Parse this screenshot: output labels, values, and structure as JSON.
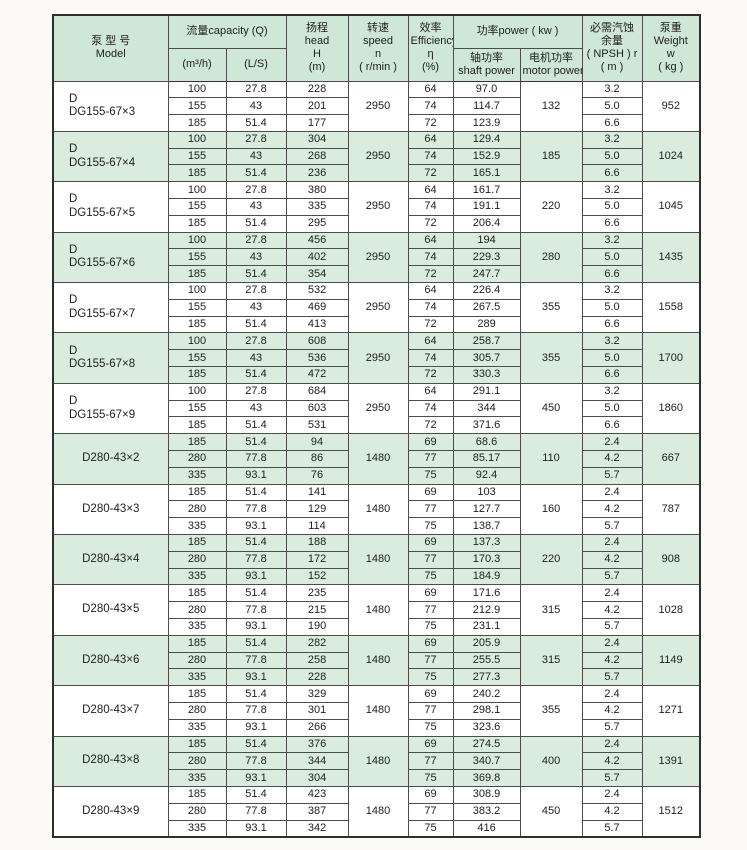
{
  "table": {
    "colors": {
      "row_green": "#d9ecdd",
      "header_green": "#cfe7d6"
    },
    "header": {
      "model": [
        "泵 型 号",
        "Model"
      ],
      "capacity_title": "流量capacity (Q)",
      "capacity_m3h": "(m³/h)",
      "capacity_ls": "(L/S)",
      "head": [
        "扬程",
        "head",
        "H",
        "(m)"
      ],
      "speed": [
        "转速",
        "speed",
        "n",
        "( r/min )"
      ],
      "efficiency": [
        "效率",
        "Efficiency",
        "η",
        "(%)"
      ],
      "power_title": "功率power ( kw )",
      "shaft_power": [
        "轴功率",
        "shaft power"
      ],
      "motor_power": [
        "电机功率",
        "motor power"
      ],
      "npsh": [
        "必需汽蚀",
        "余量",
        "( NPSH ) r",
        "( m )"
      ],
      "weight": [
        "泵重",
        "Weight",
        "w",
        "( kg )"
      ]
    },
    "groups": [
      {
        "model": [
          "D",
          "DG155-67×3"
        ],
        "shaded": false,
        "speed": "2950",
        "motor_power": "132",
        "weight": "952",
        "rows": [
          {
            "q_m3h": "100",
            "q_ls": "27.8",
            "head": "228",
            "eff": "64",
            "shaft": "97.0",
            "npsh": "3.2"
          },
          {
            "q_m3h": "155",
            "q_ls": "43",
            "head": "201",
            "eff": "74",
            "shaft": "114.7",
            "npsh": "5.0"
          },
          {
            "q_m3h": "185",
            "q_ls": "51.4",
            "head": "177",
            "eff": "72",
            "shaft": "123.9",
            "npsh": "6.6"
          }
        ]
      },
      {
        "model": [
          "D",
          "DG155-67×4"
        ],
        "shaded": true,
        "speed": "2950",
        "motor_power": "185",
        "weight": "1024",
        "rows": [
          {
            "q_m3h": "100",
            "q_ls": "27.8",
            "head": "304",
            "eff": "64",
            "shaft": "129.4",
            "npsh": "3.2"
          },
          {
            "q_m3h": "155",
            "q_ls": "43",
            "head": "268",
            "eff": "74",
            "shaft": "152.9",
            "npsh": "5.0"
          },
          {
            "q_m3h": "185",
            "q_ls": "51.4",
            "head": "236",
            "eff": "72",
            "shaft": "165.1",
            "npsh": "6.6"
          }
        ]
      },
      {
        "model": [
          "D",
          "DG155-67×5"
        ],
        "shaded": false,
        "speed": "2950",
        "motor_power": "220",
        "weight": "1045",
        "rows": [
          {
            "q_m3h": "100",
            "q_ls": "27.8",
            "head": "380",
            "eff": "64",
            "shaft": "161.7",
            "npsh": "3.2"
          },
          {
            "q_m3h": "155",
            "q_ls": "43",
            "head": "335",
            "eff": "74",
            "shaft": "191.1",
            "npsh": "5.0"
          },
          {
            "q_m3h": "185",
            "q_ls": "51.4",
            "head": "295",
            "eff": "72",
            "shaft": "206.4",
            "npsh": "6.6"
          }
        ]
      },
      {
        "model": [
          "D",
          "DG155-67×6"
        ],
        "shaded": true,
        "speed": "2950",
        "motor_power": "280",
        "weight": "1435",
        "rows": [
          {
            "q_m3h": "100",
            "q_ls": "27.8",
            "head": "456",
            "eff": "64",
            "shaft": "194",
            "npsh": "3.2"
          },
          {
            "q_m3h": "155",
            "q_ls": "43",
            "head": "402",
            "eff": "74",
            "shaft": "229.3",
            "npsh": "5.0"
          },
          {
            "q_m3h": "185",
            "q_ls": "51.4",
            "head": "354",
            "eff": "72",
            "shaft": "247.7",
            "npsh": "6.6"
          }
        ]
      },
      {
        "model": [
          "D",
          "DG155-67×7"
        ],
        "shaded": false,
        "speed": "2950",
        "motor_power": "355",
        "weight": "1558",
        "rows": [
          {
            "q_m3h": "100",
            "q_ls": "27.8",
            "head": "532",
            "eff": "64",
            "shaft": "226.4",
            "npsh": "3.2"
          },
          {
            "q_m3h": "155",
            "q_ls": "43",
            "head": "469",
            "eff": "74",
            "shaft": "267.5",
            "npsh": "5.0"
          },
          {
            "q_m3h": "185",
            "q_ls": "51.4",
            "head": "413",
            "eff": "72",
            "shaft": "289",
            "npsh": "6.6"
          }
        ]
      },
      {
        "model": [
          "D",
          "DG155-67×8"
        ],
        "shaded": true,
        "speed": "2950",
        "motor_power": "355",
        "weight": "1700",
        "rows": [
          {
            "q_m3h": "100",
            "q_ls": "27.8",
            "head": "608",
            "eff": "64",
            "shaft": "258.7",
            "npsh": "3.2"
          },
          {
            "q_m3h": "155",
            "q_ls": "43",
            "head": "536",
            "eff": "74",
            "shaft": "305.7",
            "npsh": "5.0"
          },
          {
            "q_m3h": "185",
            "q_ls": "51.4",
            "head": "472",
            "eff": "72",
            "shaft": "330.3",
            "npsh": "6.6"
          }
        ]
      },
      {
        "model": [
          "D",
          "DG155-67×9"
        ],
        "shaded": false,
        "speed": "2950",
        "motor_power": "450",
        "weight": "1860",
        "rows": [
          {
            "q_m3h": "100",
            "q_ls": "27.8",
            "head": "684",
            "eff": "64",
            "shaft": "291.1",
            "npsh": "3.2"
          },
          {
            "q_m3h": "155",
            "q_ls": "43",
            "head": "603",
            "eff": "74",
            "shaft": "344",
            "npsh": "5.0"
          },
          {
            "q_m3h": "185",
            "q_ls": "51.4",
            "head": "531",
            "eff": "72",
            "shaft": "371.6",
            "npsh": "6.6"
          }
        ]
      },
      {
        "model": [
          "D280-43×2"
        ],
        "shaded": true,
        "speed": "1480",
        "motor_power": "110",
        "weight": "667",
        "rows": [
          {
            "q_m3h": "185",
            "q_ls": "51.4",
            "head": "94",
            "eff": "69",
            "shaft": "68.6",
            "npsh": "2.4"
          },
          {
            "q_m3h": "280",
            "q_ls": "77.8",
            "head": "86",
            "eff": "77",
            "shaft": "85.17",
            "npsh": "4.2"
          },
          {
            "q_m3h": "335",
            "q_ls": "93.1",
            "head": "76",
            "eff": "75",
            "shaft": "92.4",
            "npsh": "5.7"
          }
        ]
      },
      {
        "model": [
          "D280-43×3"
        ],
        "shaded": false,
        "speed": "1480",
        "motor_power": "160",
        "weight": "787",
        "rows": [
          {
            "q_m3h": "185",
            "q_ls": "51.4",
            "head": "141",
            "eff": "69",
            "shaft": "103",
            "npsh": "2.4"
          },
          {
            "q_m3h": "280",
            "q_ls": "77.8",
            "head": "129",
            "eff": "77",
            "shaft": "127.7",
            "npsh": "4.2"
          },
          {
            "q_m3h": "335",
            "q_ls": "93.1",
            "head": "114",
            "eff": "75",
            "shaft": "138.7",
            "npsh": "5.7"
          }
        ]
      },
      {
        "model": [
          "D280-43×4"
        ],
        "shaded": true,
        "speed": "1480",
        "motor_power": "220",
        "weight": "908",
        "rows": [
          {
            "q_m3h": "185",
            "q_ls": "51.4",
            "head": "188",
            "eff": "69",
            "shaft": "137.3",
            "npsh": "2.4"
          },
          {
            "q_m3h": "280",
            "q_ls": "77.8",
            "head": "172",
            "eff": "77",
            "shaft": "170.3",
            "npsh": "4.2"
          },
          {
            "q_m3h": "335",
            "q_ls": "93.1",
            "head": "152",
            "eff": "75",
            "shaft": "184.9",
            "npsh": "5.7"
          }
        ]
      },
      {
        "model": [
          "D280-43×5"
        ],
        "shaded": false,
        "speed": "1480",
        "motor_power": "315",
        "weight": "1028",
        "rows": [
          {
            "q_m3h": "185",
            "q_ls": "51.4",
            "head": "235",
            "eff": "69",
            "shaft": "171.6",
            "npsh": "2.4"
          },
          {
            "q_m3h": "280",
            "q_ls": "77.8",
            "head": "215",
            "eff": "77",
            "shaft": "212.9",
            "npsh": "4.2"
          },
          {
            "q_m3h": "335",
            "q_ls": "93.1",
            "head": "190",
            "eff": "75",
            "shaft": "231.1",
            "npsh": "5.7"
          }
        ]
      },
      {
        "model": [
          "D280-43×6"
        ],
        "shaded": true,
        "speed": "1480",
        "motor_power": "315",
        "weight": "1149",
        "rows": [
          {
            "q_m3h": "185",
            "q_ls": "51.4",
            "head": "282",
            "eff": "69",
            "shaft": "205.9",
            "npsh": "2.4"
          },
          {
            "q_m3h": "280",
            "q_ls": "77.8",
            "head": "258",
            "eff": "77",
            "shaft": "255.5",
            "npsh": "4.2"
          },
          {
            "q_m3h": "335",
            "q_ls": "93.1",
            "head": "228",
            "eff": "75",
            "shaft": "277.3",
            "npsh": "5.7"
          }
        ]
      },
      {
        "model": [
          "D280-43×7"
        ],
        "shaded": false,
        "speed": "1480",
        "motor_power": "355",
        "weight": "1271",
        "rows": [
          {
            "q_m3h": "185",
            "q_ls": "51.4",
            "head": "329",
            "eff": "69",
            "shaft": "240.2",
            "npsh": "2.4"
          },
          {
            "q_m3h": "280",
            "q_ls": "77.8",
            "head": "301",
            "eff": "77",
            "shaft": "298.1",
            "npsh": "4.2"
          },
          {
            "q_m3h": "335",
            "q_ls": "93.1",
            "head": "266",
            "eff": "75",
            "shaft": "323.6",
            "npsh": "5.7"
          }
        ]
      },
      {
        "model": [
          "D280-43×8"
        ],
        "shaded": true,
        "speed": "1480",
        "motor_power": "400",
        "weight": "1391",
        "rows": [
          {
            "q_m3h": "185",
            "q_ls": "51.4",
            "head": "376",
            "eff": "69",
            "shaft": "274.5",
            "npsh": "2.4"
          },
          {
            "q_m3h": "280",
            "q_ls": "77.8",
            "head": "344",
            "eff": "77",
            "shaft": "340.7",
            "npsh": "4.2"
          },
          {
            "q_m3h": "335",
            "q_ls": "93.1",
            "head": "304",
            "eff": "75",
            "shaft": "369.8",
            "npsh": "5.7"
          }
        ]
      },
      {
        "model": [
          "D280-43×9"
        ],
        "shaded": false,
        "speed": "1480",
        "motor_power": "450",
        "weight": "1512",
        "rows": [
          {
            "q_m3h": "185",
            "q_ls": "51.4",
            "head": "423",
            "eff": "69",
            "shaft": "308.9",
            "npsh": "2.4"
          },
          {
            "q_m3h": "280",
            "q_ls": "77.8",
            "head": "387",
            "eff": "77",
            "shaft": "383.2",
            "npsh": "4.2"
          },
          {
            "q_m3h": "335",
            "q_ls": "93.1",
            "head": "342",
            "eff": "75",
            "shaft": "416",
            "npsh": "5.7"
          }
        ]
      }
    ]
  }
}
